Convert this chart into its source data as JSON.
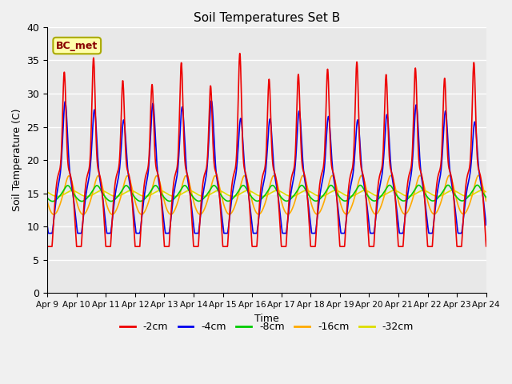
{
  "title": "Soil Temperatures Set B",
  "xlabel": "Time",
  "ylabel": "Soil Temperature (C)",
  "ylim": [
    0,
    40
  ],
  "yticks": [
    0,
    5,
    10,
    15,
    20,
    25,
    30,
    35,
    40
  ],
  "date_labels": [
    "Apr 9",
    "Apr 10",
    "Apr 11",
    "Apr 12",
    "Apr 13",
    "Apr 14",
    "Apr 15",
    "Apr 16",
    "Apr 17",
    "Apr 18",
    "Apr 19",
    "Apr 20",
    "Apr 21",
    "Apr 22",
    "Apr 23",
    "Apr 24"
  ],
  "series": {
    "-2cm": {
      "color": "#ee0000",
      "lw": 1.2
    },
    "-4cm": {
      "color": "#0000ee",
      "lw": 1.2
    },
    "-8cm": {
      "color": "#00cc00",
      "lw": 1.2
    },
    "-16cm": {
      "color": "#ffaa00",
      "lw": 1.2
    },
    "-32cm": {
      "color": "#dddd00",
      "lw": 1.2
    }
  },
  "legend_label": "BC_met",
  "plot_bg_color": "#e8e8e8",
  "fig_bg_color": "#f0f0f0"
}
